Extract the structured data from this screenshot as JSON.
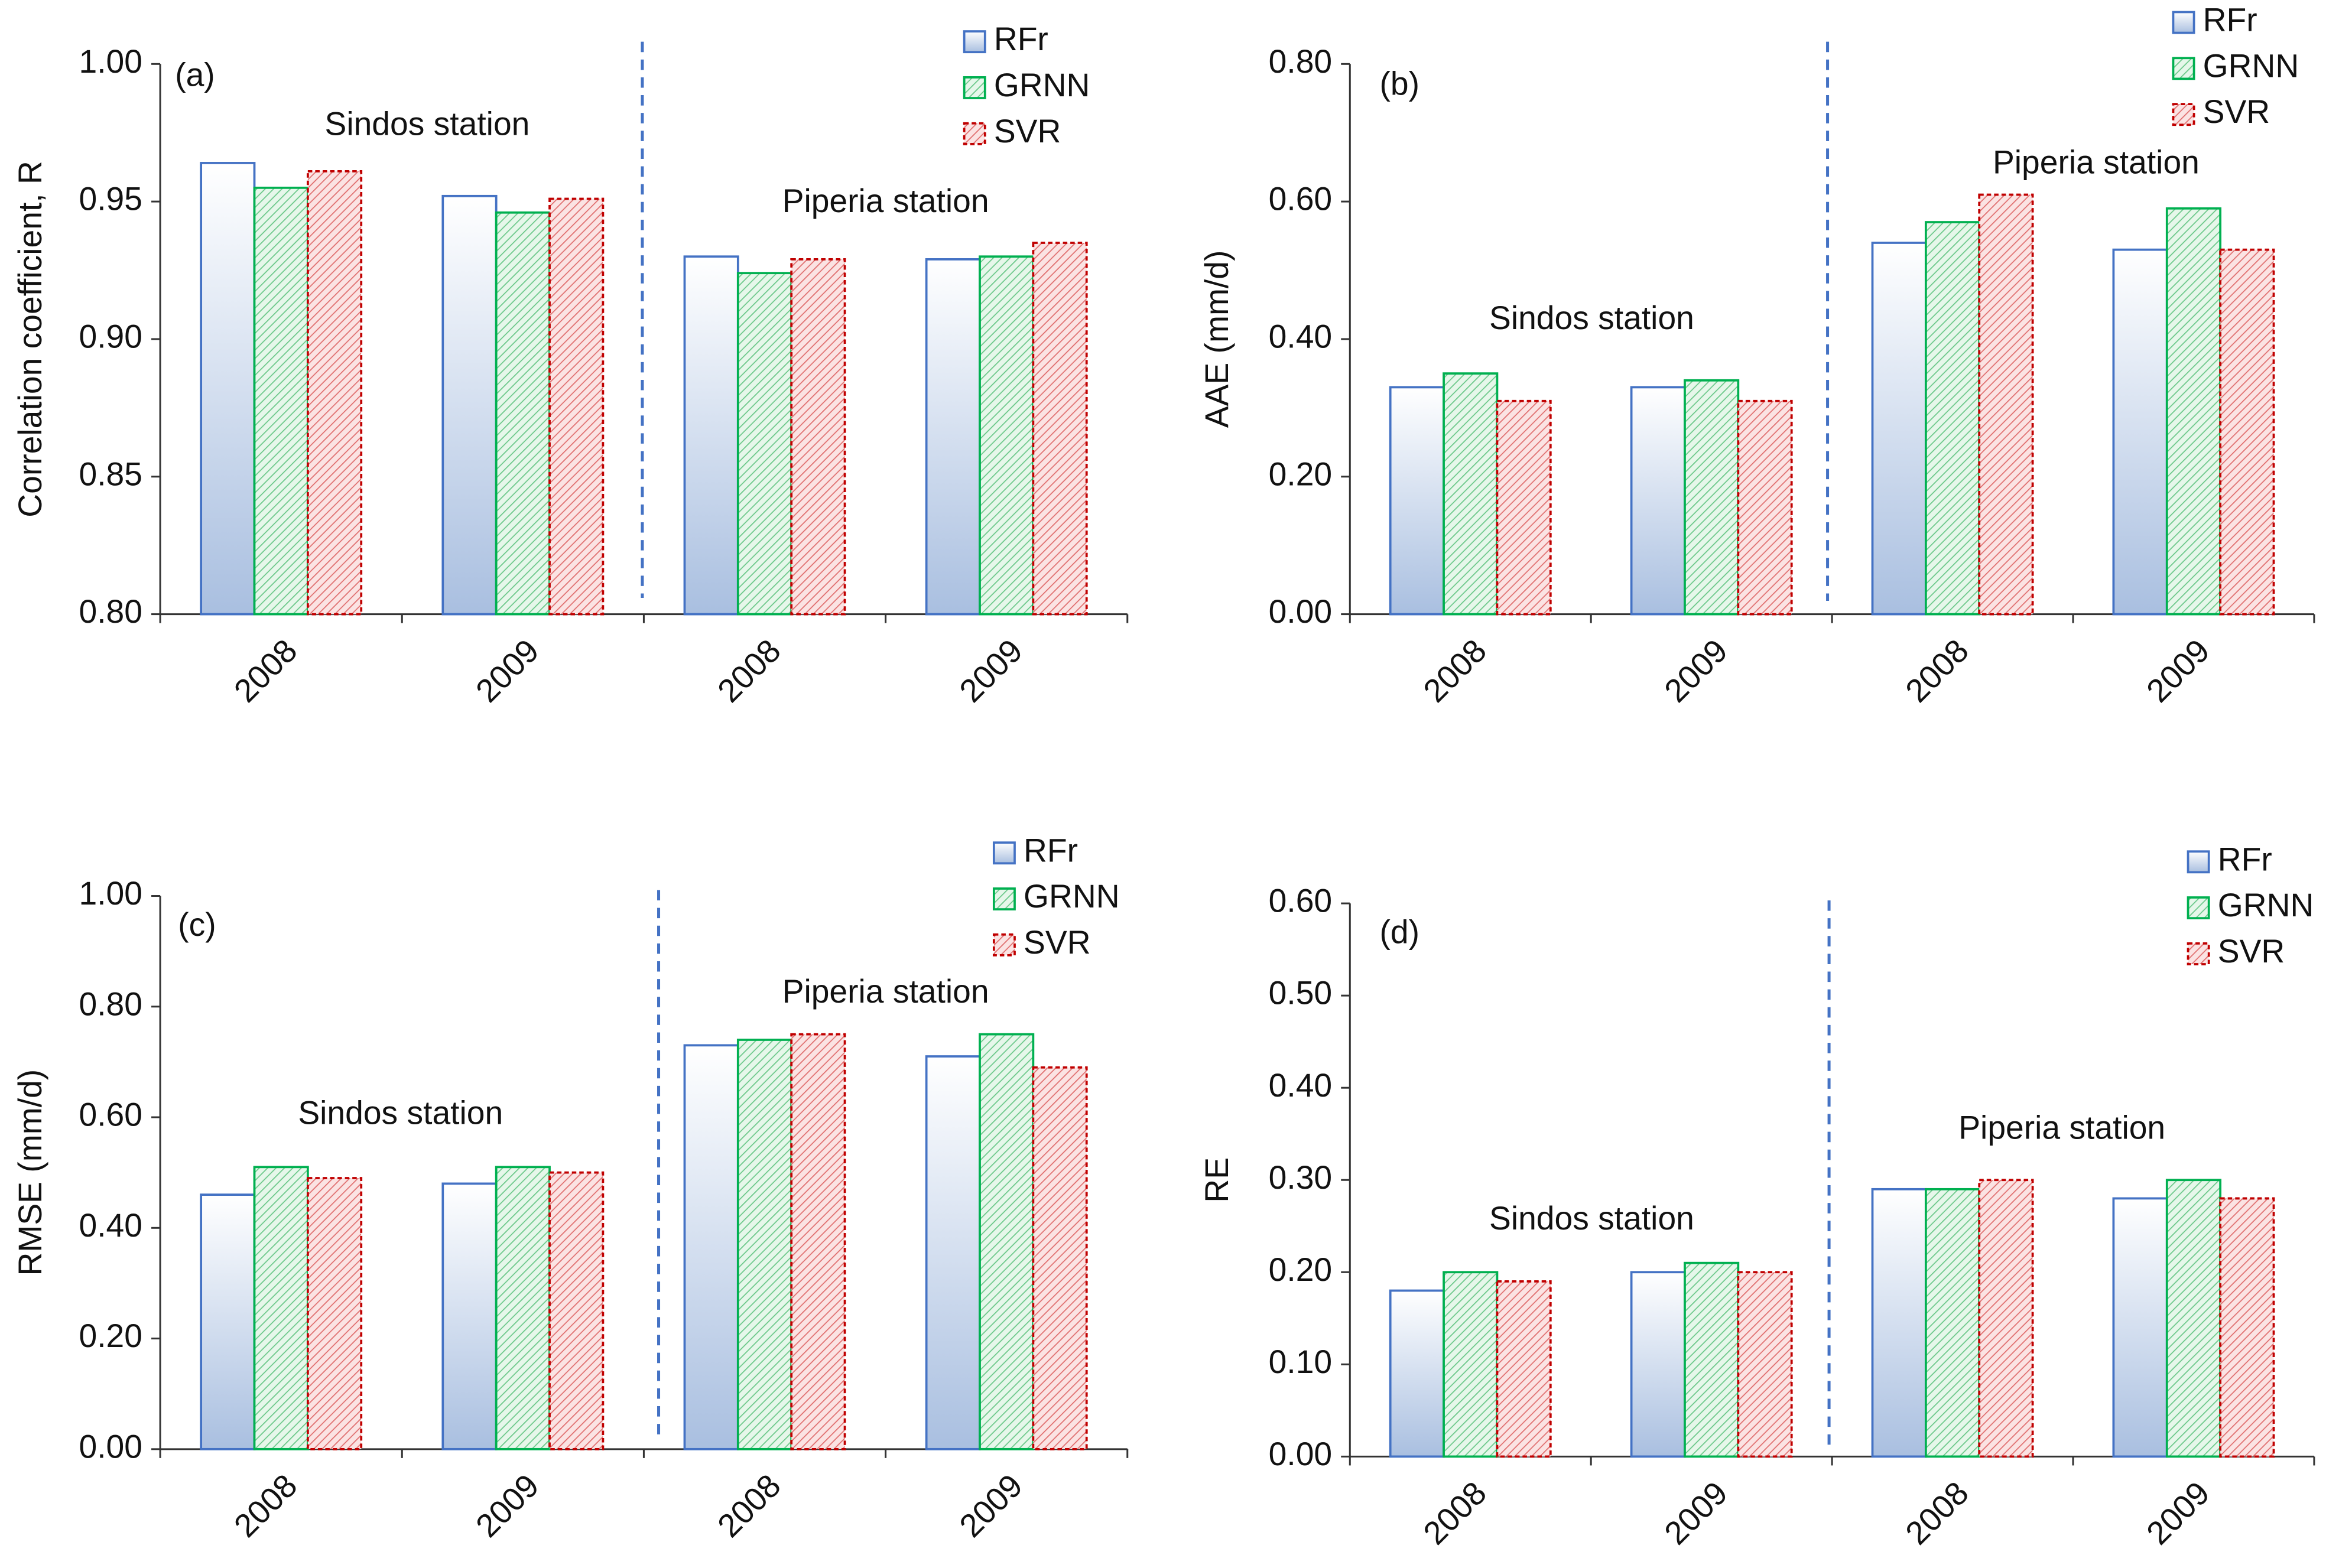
{
  "chart_data": [
    {
      "type": "bar",
      "panel_label": "(a)",
      "ylabel": "Correlation coefficient, R",
      "categories": [
        "2008",
        "2009",
        "2008",
        "2009"
      ],
      "series": [
        {
          "name": "RFr",
          "color": "#4472c4",
          "values": [
            0.964,
            0.952,
            0.93,
            0.929
          ]
        },
        {
          "name": "GRNN",
          "color": "#00b050",
          "values": [
            0.955,
            0.946,
            0.924,
            0.93
          ]
        },
        {
          "name": "SVR",
          "color": "#c00000",
          "values": [
            0.961,
            0.951,
            0.929,
            0.935
          ]
        }
      ],
      "ylim": [
        0.8,
        1.0
      ],
      "yticks": [
        {
          "value": 0.8,
          "label": "0.80"
        },
        {
          "value": 0.85,
          "label": "0.85"
        },
        {
          "value": 0.9,
          "label": "0.90"
        },
        {
          "value": 0.95,
          "label": "0.95"
        },
        {
          "value": 1.0,
          "label": "1.00"
        }
      ],
      "annotations": [
        "Sindos station",
        "Piperia station"
      ]
    },
    {
      "type": "bar",
      "panel_label": "(b)",
      "ylabel": "AAE (mm/d)",
      "categories": [
        "2008",
        "2009",
        "2008",
        "2009"
      ],
      "series": [
        {
          "name": "RFr",
          "color": "#4472c4",
          "values": [
            0.33,
            0.33,
            0.54,
            0.53
          ]
        },
        {
          "name": "GRNN",
          "color": "#00b050",
          "values": [
            0.35,
            0.34,
            0.57,
            0.59
          ]
        },
        {
          "name": "SVR",
          "color": "#c00000",
          "values": [
            0.31,
            0.31,
            0.61,
            0.53
          ]
        }
      ],
      "ylim": [
        0,
        0.8
      ],
      "yticks": [
        {
          "value": 0,
          "label": "0.00"
        },
        {
          "value": 0.2,
          "label": "0.20"
        },
        {
          "value": 0.4,
          "label": "0.40"
        },
        {
          "value": 0.6,
          "label": "0.60"
        },
        {
          "value": 0.8,
          "label": "0.80"
        }
      ],
      "annotations": [
        "Sindos station",
        "Piperia station"
      ]
    },
    {
      "type": "bar",
      "panel_label": "(c)",
      "ylabel": "RMSE (mm/d)",
      "categories": [
        "2008",
        "2009",
        "2008",
        "2009"
      ],
      "series": [
        {
          "name": "RFr",
          "color": "#4472c4",
          "values": [
            0.46,
            0.48,
            0.73,
            0.71
          ]
        },
        {
          "name": "GRNN",
          "color": "#00b050",
          "values": [
            0.51,
            0.51,
            0.74,
            0.75
          ]
        },
        {
          "name": "SVR",
          "color": "#c00000",
          "values": [
            0.49,
            0.5,
            0.75,
            0.69
          ]
        }
      ],
      "ylim": [
        0,
        1.0
      ],
      "yticks": [
        {
          "value": 0,
          "label": "0.00"
        },
        {
          "value": 0.2,
          "label": "0.20"
        },
        {
          "value": 0.4,
          "label": "0.40"
        },
        {
          "value": 0.6,
          "label": "0.60"
        },
        {
          "value": 0.8,
          "label": "0.80"
        },
        {
          "value": 1.0,
          "label": "1.00"
        }
      ],
      "annotations": [
        "Sindos station",
        "Piperia station"
      ]
    },
    {
      "type": "bar",
      "panel_label": "(d)",
      "ylabel": "RE",
      "categories": [
        "2008",
        "2009",
        "2008",
        "2009"
      ],
      "series": [
        {
          "name": "RFr",
          "color": "#4472c4",
          "values": [
            0.18,
            0.2,
            0.29,
            0.28
          ]
        },
        {
          "name": "GRNN",
          "color": "#00b050",
          "values": [
            0.2,
            0.21,
            0.29,
            0.3
          ]
        },
        {
          "name": "SVR",
          "color": "#c00000",
          "values": [
            0.19,
            0.2,
            0.3,
            0.28
          ]
        }
      ],
      "ylim": [
        0,
        0.6
      ],
      "yticks": [
        {
          "value": 0,
          "label": "0.00"
        },
        {
          "value": 0.1,
          "label": "0.10"
        },
        {
          "value": 0.2,
          "label": "0.20"
        },
        {
          "value": 0.3,
          "label": "0.30"
        },
        {
          "value": 0.4,
          "label": "0.40"
        },
        {
          "value": 0.5,
          "label": "0.50"
        },
        {
          "value": 0.6,
          "label": "0.60"
        }
      ],
      "annotations": [
        "Sindos station",
        "Piperia station"
      ]
    }
  ]
}
